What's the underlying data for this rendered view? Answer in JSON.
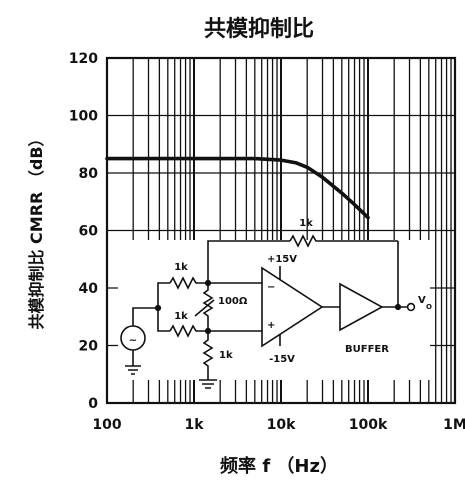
{
  "chart_data": {
    "type": "line",
    "title": "共模抑制比",
    "ylabel": "共模抑制比 CMRR （dB）",
    "xlabel": "频率 f （Hz）",
    "x_scale": "log",
    "xlim": [
      100,
      1000000
    ],
    "ylim": [
      0,
      120
    ],
    "x_tick_labels": [
      "100",
      "1k",
      "10k",
      "100k",
      "1M"
    ],
    "y_tick_labels": [
      "0",
      "20",
      "40",
      "60",
      "80",
      "100",
      "120"
    ],
    "grid": true,
    "series": [
      {
        "x": [
          100,
          1000,
          5000,
          10000,
          15000,
          20000,
          30000,
          50000,
          70000,
          100000
        ],
        "y": [
          85,
          85,
          85,
          84.5,
          83.5,
          82,
          78.5,
          73,
          69,
          64.5
        ]
      }
    ]
  },
  "circuit": {
    "r_in_top": "1k",
    "r_in_bottom": "1k",
    "r_trim": "100Ω",
    "r_ground": "1k",
    "r_feedback": "1k",
    "supply_pos": "+15V",
    "supply_neg": "-15V",
    "minus_sign": "−",
    "plus_sign": "+",
    "buffer_label": "BUFFER",
    "out_main": "V",
    "out_sub": "O",
    "source_symbol": "~"
  }
}
